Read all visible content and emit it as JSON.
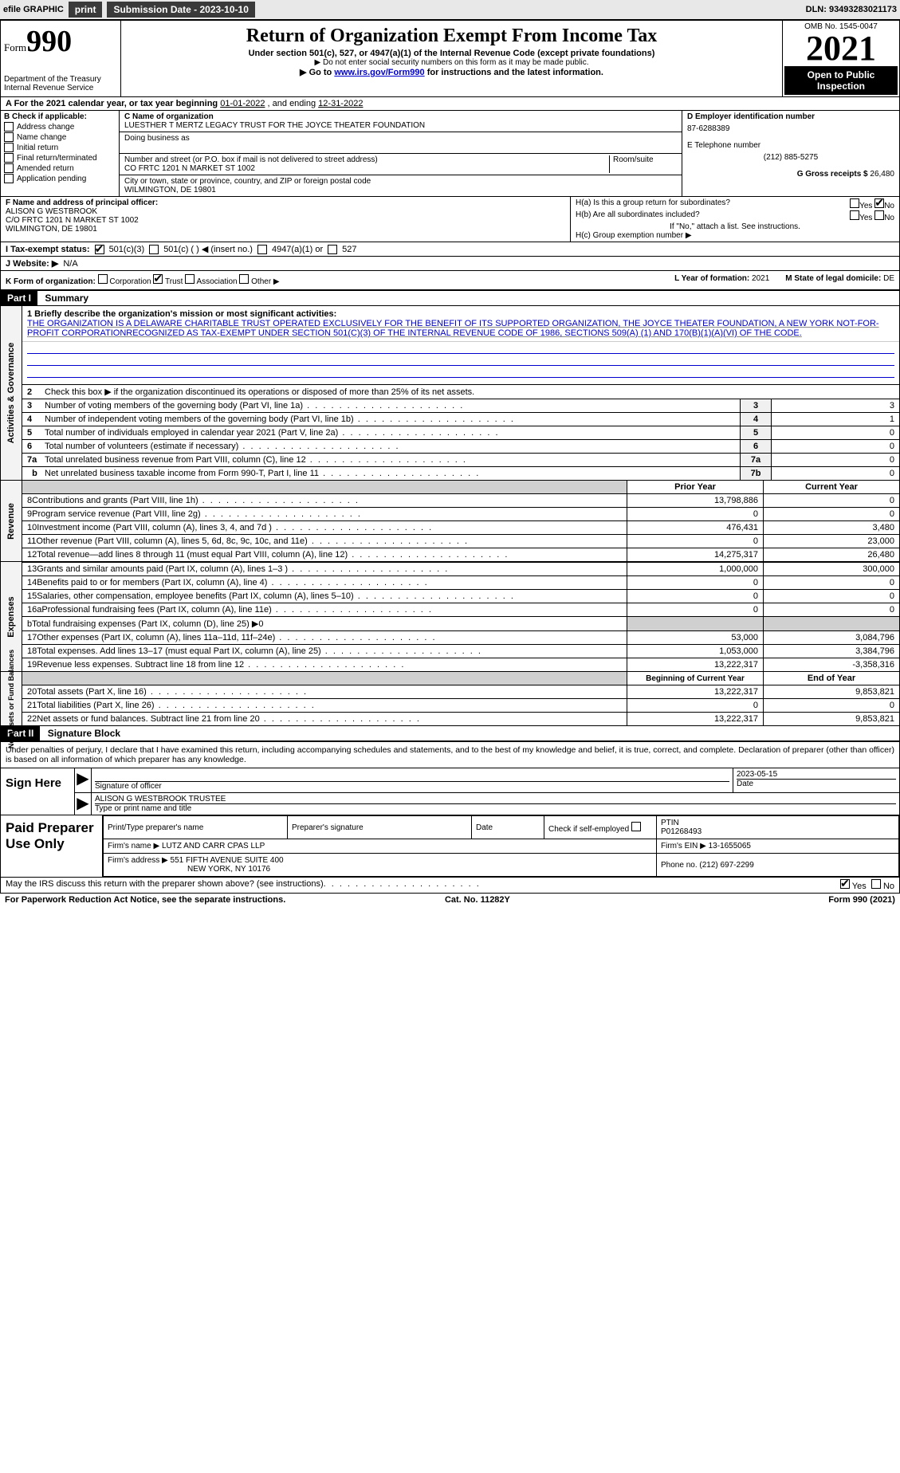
{
  "topbar": {
    "efile": "efile GRAPHIC",
    "print": "print",
    "subdate_label": "Submission Date - 2023-10-10",
    "dln": "DLN: 93493283021173"
  },
  "header": {
    "form_prefix": "Form",
    "form_number": "990",
    "dept": "Department of the Treasury",
    "irs": "Internal Revenue Service",
    "title": "Return of Organization Exempt From Income Tax",
    "sub1": "Under section 501(c), 527, or 4947(a)(1) of the Internal Revenue Code (except private foundations)",
    "sub2": "▶ Do not enter social security numbers on this form as it may be made public.",
    "sub3_pre": "▶ Go to ",
    "sub3_link": "www.irs.gov/Form990",
    "sub3_post": " for instructions and the latest information.",
    "omb": "OMB No. 1545-0047",
    "year": "2021",
    "inspect": "Open to Public Inspection"
  },
  "rowA": {
    "text_pre": "A For the 2021 calendar year, or tax year beginning ",
    "begin": "01-01-2022",
    "mid": "    , and ending ",
    "end": "12-31-2022"
  },
  "colB": {
    "title": "B Check if applicable:",
    "items": [
      "Address change",
      "Name change",
      "Initial return",
      "Final return/terminated",
      "Amended return",
      "Application pending"
    ]
  },
  "colC": {
    "name_label": "C Name of organization",
    "name": "LUESTHER T MERTZ LEGACY TRUST FOR THE JOYCE THEATER FOUNDATION",
    "dba_label": "Doing business as",
    "addr_label": "Number and street (or P.O. box if mail is not delivered to street address)",
    "room_label": "Room/suite",
    "addr": "CO FRTC 1201 N MARKET ST 1002",
    "city_label": "City or town, state or province, country, and ZIP or foreign postal code",
    "city": "WILMINGTON, DE  19801"
  },
  "colD": {
    "d_label": "D Employer identification number",
    "ein": "87-6288389",
    "e_label": "E Telephone number",
    "phone": "(212) 885-5275",
    "g_label": "G Gross receipts $ ",
    "g_val": "26,480"
  },
  "sectF": {
    "label": "F  Name and address of principal officer:",
    "name": "ALISON G WESTBROOK",
    "addr1": "C/O FRTC 1201 N MARKET ST 1002",
    "addr2": "WILMINGTON, DE  19801"
  },
  "sectH": {
    "ha": "H(a)  Is this a group return for subordinates?",
    "hb": "H(b)  Are all subordinates included?",
    "hb_note": "If \"No,\" attach a list. See instructions.",
    "hc": "H(c)  Group exemption number ▶",
    "yes": "Yes",
    "no": "No"
  },
  "rowI": {
    "label": "I   Tax-exempt status:",
    "opt1": "501(c)(3)",
    "opt2": "501(c) (   ) ◀ (insert no.)",
    "opt3": "4947(a)(1) or",
    "opt4": "527"
  },
  "rowJ": {
    "label": "J   Website: ▶",
    "val": "  N/A"
  },
  "rowK": {
    "label": "K Form of organization:",
    "opts": [
      "Corporation",
      "Trust",
      "Association",
      "Other ▶"
    ],
    "l_label": "L Year of formation: ",
    "l_val": "2021",
    "m_label": "M State of legal domicile: ",
    "m_val": "DE"
  },
  "part1": {
    "header": "Part I",
    "title": "Summary"
  },
  "mission": {
    "line1_label": "1  Briefly describe the organization's mission or most significant activities:",
    "text": "THE ORGANIZATION IS A DELAWARE CHARITABLE TRUST OPERATED EXCLUSIVELY FOR THE BENEFIT OF ITS SUPPORTED ORGANIZATION, THE JOYCE THEATER FOUNDATION, A NEW YORK NOT-FOR-PROFIT CORPORATIONRECOGNIZED AS TAX-EXEMPT UNDER SECTION 501(C)(3) OF THE INTERNAL REVENUE CODE OF 1986, SECTIONS 509(A) (1) AND 170(B)(1)(A)(VI) OF THE CODE."
  },
  "gov_lines": {
    "l2": "Check this box ▶      if the organization discontinued its operations or disposed of more than 25% of its net assets.",
    "rows": [
      {
        "n": "3",
        "desc": "Number of voting members of the governing body (Part VI, line 1a)",
        "num": "3",
        "val": "3"
      },
      {
        "n": "4",
        "desc": "Number of independent voting members of the governing body (Part VI, line 1b)",
        "num": "4",
        "val": "1"
      },
      {
        "n": "5",
        "desc": "Total number of individuals employed in calendar year 2021 (Part V, line 2a)",
        "num": "5",
        "val": "0"
      },
      {
        "n": "6",
        "desc": "Total number of volunteers (estimate if necessary)",
        "num": "6",
        "val": "0"
      },
      {
        "n": "7a",
        "desc": "Total unrelated business revenue from Part VIII, column (C), line 12",
        "num": "7a",
        "val": "0"
      },
      {
        "n": "",
        "desc": "Net unrelated business taxable income from Form 990-T, Part I, line 11",
        "num": "7b",
        "val": "0",
        "indent": "b"
      }
    ]
  },
  "revenue": {
    "header_prior": "Prior Year",
    "header_current": "Current Year",
    "rows": [
      {
        "n": "8",
        "desc": "Contributions and grants (Part VIII, line 1h)",
        "p": "13,798,886",
        "c": "0"
      },
      {
        "n": "9",
        "desc": "Program service revenue (Part VIII, line 2g)",
        "p": "0",
        "c": "0"
      },
      {
        "n": "10",
        "desc": "Investment income (Part VIII, column (A), lines 3, 4, and 7d )",
        "p": "476,431",
        "c": "3,480"
      },
      {
        "n": "11",
        "desc": "Other revenue (Part VIII, column (A), lines 5, 6d, 8c, 9c, 10c, and 11e)",
        "p": "0",
        "c": "23,000"
      },
      {
        "n": "12",
        "desc": "Total revenue—add lines 8 through 11 (must equal Part VIII, column (A), line 12)",
        "p": "14,275,317",
        "c": "26,480"
      }
    ]
  },
  "expenses": {
    "rows": [
      {
        "n": "13",
        "desc": "Grants and similar amounts paid (Part IX, column (A), lines 1–3 )",
        "p": "1,000,000",
        "c": "300,000"
      },
      {
        "n": "14",
        "desc": "Benefits paid to or for members (Part IX, column (A), line 4)",
        "p": "0",
        "c": "0"
      },
      {
        "n": "15",
        "desc": "Salaries, other compensation, employee benefits (Part IX, column (A), lines 5–10)",
        "p": "0",
        "c": "0"
      },
      {
        "n": "16a",
        "desc": "Professional fundraising fees (Part IX, column (A), line 11e)",
        "p": "0",
        "c": "0"
      },
      {
        "n": "b",
        "desc": "Total fundraising expenses (Part IX, column (D), line 25) ▶0",
        "p": "",
        "c": "",
        "shaded": true
      },
      {
        "n": "17",
        "desc": "Other expenses (Part IX, column (A), lines 11a–11d, 11f–24e)",
        "p": "53,000",
        "c": "3,084,796"
      },
      {
        "n": "18",
        "desc": "Total expenses. Add lines 13–17 (must equal Part IX, column (A), line 25)",
        "p": "1,053,000",
        "c": "3,384,796"
      },
      {
        "n": "19",
        "desc": "Revenue less expenses. Subtract line 18 from line 12",
        "p": "13,222,317",
        "c": "-3,358,316"
      }
    ]
  },
  "netassets": {
    "header_beg": "Beginning of Current Year",
    "header_end": "End of Year",
    "rows": [
      {
        "n": "20",
        "desc": "Total assets (Part X, line 16)",
        "p": "13,222,317",
        "c": "9,853,821"
      },
      {
        "n": "21",
        "desc": "Total liabilities (Part X, line 26)",
        "p": "0",
        "c": "0"
      },
      {
        "n": "22",
        "desc": "Net assets or fund balances. Subtract line 21 from line 20",
        "p": "13,222,317",
        "c": "9,853,821"
      }
    ]
  },
  "vtabs": {
    "gov": "Activities & Governance",
    "rev": "Revenue",
    "exp": "Expenses",
    "net": "Net Assets or Fund Balances"
  },
  "part2": {
    "header": "Part II",
    "title": "Signature Block",
    "text": "Under penalties of perjury, I declare that I have examined this return, including accompanying schedules and statements, and to the best of my knowledge and belief, it is true, correct, and complete. Declaration of preparer (other than officer) is based on all information of which preparer has any knowledge."
  },
  "sign": {
    "here": "Sign Here",
    "sig_label": "Signature of officer",
    "date_label": "Date",
    "date": "2023-05-15",
    "name": "ALISON G WESTBROOK  TRUSTEE",
    "name_label": "Type or print name and title"
  },
  "paid": {
    "title": "Paid Preparer Use Only",
    "h1": "Print/Type preparer's name",
    "h2": "Preparer's signature",
    "h3": "Date",
    "h4": "Check        if self-employed",
    "h5_label": "PTIN",
    "h5": "P01268493",
    "firm_label": "Firm's name     ▶",
    "firm": "LUTZ AND CARR CPAS LLP",
    "ein_label": "Firm's EIN ▶ ",
    "ein": "13-1655065",
    "addr_label": "Firm's address ▶",
    "addr1": "551 FIFTH AVENUE SUITE 400",
    "addr2": "NEW YORK, NY  10176",
    "phone_label": "Phone no. ",
    "phone": "(212) 697-2299"
  },
  "footer": {
    "discuss": "May the IRS discuss this return with the preparer shown above? (see instructions)",
    "yes": "Yes",
    "no": "No",
    "pra": "For Paperwork Reduction Act Notice, see the separate instructions.",
    "cat": "Cat. No. 11282Y",
    "form": "Form 990 (2021)"
  }
}
